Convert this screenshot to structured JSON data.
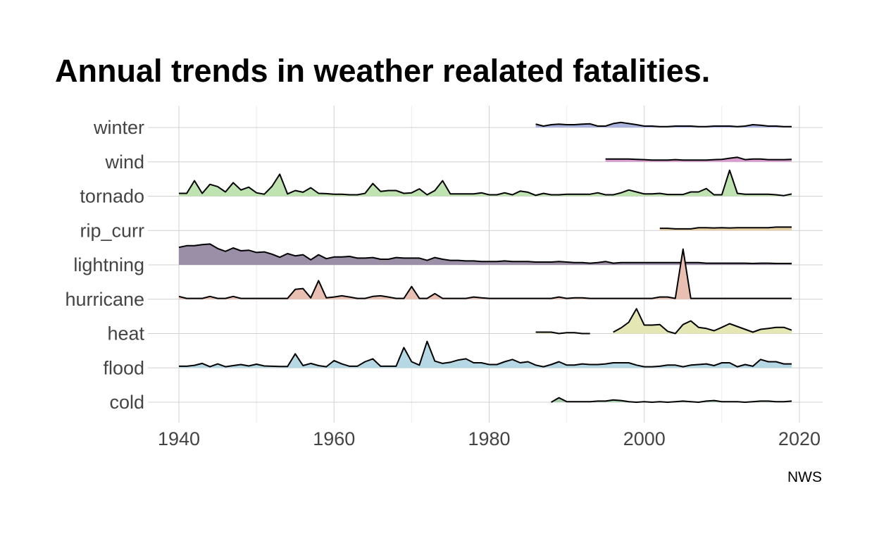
{
  "title": "Annual trends in weather realated fatalities.",
  "caption": "NWS",
  "chart_data": {
    "type": "area",
    "subtype": "ridgeline",
    "title": "Annual trends in weather realated fatalities.",
    "xlabel": "",
    "ylabel": "",
    "xlim": [
      1936,
      2023
    ],
    "x_ticks": [
      1940,
      1960,
      1980,
      2000,
      2020
    ],
    "grid": true,
    "legend": "none",
    "categories": [
      "winter",
      "wind",
      "tornado",
      "rip_curr",
      "lightning",
      "hurricane",
      "heat",
      "flood",
      "cold"
    ],
    "series": [
      {
        "name": "winter",
        "color": "#a9b3dc",
        "x": [
          1986,
          1987,
          1988,
          1989,
          1990,
          1991,
          1992,
          1993,
          1994,
          1995,
          1996,
          1997,
          1998,
          1999,
          2000,
          2001,
          2002,
          2003,
          2004,
          2005,
          2006,
          2007,
          2008,
          2009,
          2010,
          2011,
          2012,
          2013,
          2014,
          2015,
          2016,
          2017,
          2018,
          2019
        ],
        "y": [
          0.12,
          0.05,
          0.1,
          0.12,
          0.1,
          0.1,
          0.12,
          0.13,
          0.05,
          0.05,
          0.14,
          0.18,
          0.14,
          0.1,
          0.05,
          0.05,
          0.03,
          0.03,
          0.05,
          0.05,
          0.05,
          0.03,
          0.03,
          0.05,
          0.05,
          0.05,
          0.03,
          0.05,
          0.1,
          0.08,
          0.05,
          0.05,
          0.03,
          0.03
        ]
      },
      {
        "name": "wind",
        "color": "#d99ed0",
        "x": [
          1995,
          1996,
          1997,
          1998,
          1999,
          2000,
          2001,
          2002,
          2003,
          2004,
          2005,
          2006,
          2007,
          2008,
          2009,
          2010,
          2011,
          2012,
          2013,
          2014,
          2015,
          2016,
          2017,
          2018,
          2019
        ],
        "y": [
          0.1,
          0.1,
          0.1,
          0.1,
          0.09,
          0.08,
          0.06,
          0.06,
          0.06,
          0.08,
          0.06,
          0.06,
          0.06,
          0.06,
          0.08,
          0.09,
          0.13,
          0.16,
          0.08,
          0.1,
          0.1,
          0.08,
          0.08,
          0.08,
          0.09
        ]
      },
      {
        "name": "tornado",
        "color": "#bfe3b0",
        "x": [
          1940,
          1941,
          1942,
          1943,
          1944,
          1945,
          1946,
          1947,
          1948,
          1949,
          1950,
          1951,
          1952,
          1953,
          1954,
          1955,
          1956,
          1957,
          1958,
          1959,
          1960,
          1961,
          1962,
          1963,
          1964,
          1965,
          1966,
          1967,
          1968,
          1969,
          1970,
          1971,
          1972,
          1973,
          1974,
          1975,
          1976,
          1977,
          1978,
          1979,
          1980,
          1981,
          1982,
          1983,
          1984,
          1985,
          1986,
          1987,
          1988,
          1989,
          1990,
          1991,
          1992,
          1993,
          1994,
          1995,
          1996,
          1997,
          1998,
          1999,
          2000,
          2001,
          2002,
          2003,
          2004,
          2005,
          2006,
          2007,
          2008,
          2009,
          2010,
          2011,
          2012,
          2013,
          2014,
          2015,
          2016,
          2017,
          2018,
          2019
        ],
        "y": [
          0.1,
          0.1,
          0.55,
          0.1,
          0.42,
          0.34,
          0.15,
          0.48,
          0.22,
          0.32,
          0.12,
          0.07,
          0.35,
          0.78,
          0.08,
          0.2,
          0.14,
          0.3,
          0.1,
          0.09,
          0.07,
          0.07,
          0.05,
          0.05,
          0.1,
          0.45,
          0.17,
          0.2,
          0.2,
          0.1,
          0.12,
          0.26,
          0.05,
          0.2,
          0.55,
          0.08,
          0.08,
          0.08,
          0.08,
          0.12,
          0.05,
          0.05,
          0.12,
          0.05,
          0.18,
          0.14,
          0.03,
          0.1,
          0.05,
          0.05,
          0.07,
          0.07,
          0.07,
          0.07,
          0.12,
          0.05,
          0.05,
          0.12,
          0.22,
          0.15,
          0.08,
          0.08,
          0.1,
          0.06,
          0.06,
          0.06,
          0.15,
          0.15,
          0.27,
          0.05,
          0.05,
          0.92,
          0.1,
          0.07,
          0.07,
          0.07,
          0.07,
          0.05,
          0.02,
          0.08
        ]
      },
      {
        "name": "rip_curr",
        "color": "#e7cfa7",
        "x": [
          2002,
          2003,
          2004,
          2005,
          2006,
          2007,
          2008,
          2009,
          2010,
          2011,
          2012,
          2013,
          2014,
          2015,
          2016,
          2017,
          2018,
          2019
        ],
        "y": [
          0.08,
          0.08,
          0.06,
          0.06,
          0.06,
          0.1,
          0.1,
          0.09,
          0.1,
          0.09,
          0.1,
          0.1,
          0.1,
          0.1,
          0.1,
          0.12,
          0.12,
          0.12
        ]
      },
      {
        "name": "lightning",
        "color": "#9b8fa8",
        "x": [
          1940,
          1941,
          1942,
          1943,
          1944,
          1945,
          1946,
          1947,
          1948,
          1949,
          1950,
          1951,
          1952,
          1953,
          1954,
          1955,
          1956,
          1957,
          1958,
          1959,
          1960,
          1961,
          1962,
          1963,
          1964,
          1965,
          1966,
          1967,
          1968,
          1969,
          1970,
          1971,
          1972,
          1973,
          1974,
          1975,
          1976,
          1977,
          1978,
          1979,
          1980,
          1981,
          1982,
          1983,
          1984,
          1985,
          1986,
          1987,
          1988,
          1989,
          1990,
          1991,
          1992,
          1993,
          1994,
          1995,
          1996,
          1997,
          1998,
          1999,
          2000,
          2001,
          2002,
          2003,
          2004,
          2005,
          2006,
          2007,
          2008,
          2009,
          2010,
          2011,
          2012,
          2013,
          2014,
          2015,
          2016,
          2017,
          2018,
          2019
        ],
        "y": [
          0.62,
          0.68,
          0.68,
          0.72,
          0.74,
          0.58,
          0.48,
          0.6,
          0.5,
          0.52,
          0.44,
          0.46,
          0.38,
          0.27,
          0.4,
          0.32,
          0.36,
          0.18,
          0.36,
          0.22,
          0.28,
          0.28,
          0.3,
          0.24,
          0.24,
          0.26,
          0.2,
          0.2,
          0.26,
          0.24,
          0.24,
          0.24,
          0.16,
          0.26,
          0.2,
          0.16,
          0.16,
          0.14,
          0.14,
          0.12,
          0.12,
          0.12,
          0.14,
          0.12,
          0.12,
          0.12,
          0.1,
          0.1,
          0.1,
          0.12,
          0.1,
          0.08,
          0.08,
          0.06,
          0.08,
          0.12,
          0.06,
          0.08,
          0.08,
          0.08,
          0.08,
          0.08,
          0.08,
          0.08,
          0.08,
          0.08,
          0.08,
          0.08,
          0.06,
          0.06,
          0.06,
          0.06,
          0.06,
          0.06,
          0.05,
          0.06,
          0.06,
          0.05,
          0.05,
          0.05
        ]
      },
      {
        "name": "hurricane",
        "color": "#e8bfb1",
        "x": [
          1940,
          1941,
          1942,
          1943,
          1944,
          1945,
          1946,
          1947,
          1948,
          1949,
          1950,
          1951,
          1952,
          1953,
          1954,
          1955,
          1956,
          1957,
          1958,
          1959,
          1960,
          1961,
          1962,
          1963,
          1964,
          1965,
          1966,
          1967,
          1968,
          1969,
          1970,
          1971,
          1972,
          1973,
          1974,
          1975,
          1976,
          1977,
          1978,
          1979,
          1980,
          1981,
          1982,
          1983,
          1984,
          1985,
          1986,
          1987,
          1988,
          1989,
          1990,
          1991,
          1992,
          1993,
          1994,
          1995,
          1996,
          1997,
          1998,
          1999,
          2000,
          2001,
          2002,
          2003,
          2004,
          2005,
          2006,
          2007,
          2008,
          2009,
          2010,
          2011,
          2012,
          2013,
          2014,
          2015,
          2016,
          2017,
          2018,
          2019
        ],
        "y": [
          0.1,
          0.03,
          0.03,
          0.03,
          0.1,
          0.03,
          0.03,
          0.1,
          0.03,
          0.03,
          0.03,
          0.03,
          0.03,
          0.03,
          0.03,
          0.35,
          0.38,
          0.05,
          0.66,
          0.05,
          0.08,
          0.12,
          0.08,
          0.03,
          0.03,
          0.1,
          0.12,
          0.08,
          0.03,
          0.03,
          0.45,
          0.03,
          0.03,
          0.2,
          0.03,
          0.03,
          0.03,
          0.03,
          0.08,
          0.05,
          0.03,
          0.03,
          0.03,
          0.03,
          0.03,
          0.03,
          0.03,
          0.03,
          0.03,
          0.08,
          0.03,
          0.05,
          0.05,
          0.03,
          0.03,
          0.03,
          0.03,
          0.03,
          0.03,
          0.03,
          0.03,
          0.03,
          0.08,
          0.08,
          0.03,
          1.78,
          0.03,
          0.03,
          0.03,
          0.03,
          0.03,
          0.03,
          0.03,
          0.03,
          0.03,
          0.03,
          0.03,
          0.03,
          0.03,
          0.03
        ]
      },
      {
        "name": "heat",
        "color": "#e4e6b4",
        "x": [
          1986,
          1987,
          1988,
          1989,
          1990,
          1991,
          1992,
          1993,
          null,
          1996,
          1997,
          1998,
          1999,
          2000,
          2001,
          2002,
          2003,
          2004,
          2005,
          2006,
          2007,
          2008,
          2009,
          2010,
          2011,
          2012,
          2013,
          2014,
          2015,
          2016,
          2017,
          2018,
          2019
        ],
        "y": [
          0.05,
          0.05,
          0.05,
          0.0,
          0.03,
          0.03,
          0.0,
          0.0,
          null,
          0.05,
          0.2,
          0.4,
          0.88,
          0.3,
          0.3,
          0.32,
          0.08,
          0.0,
          0.32,
          0.45,
          0.22,
          0.18,
          0.1,
          0.22,
          0.35,
          0.25,
          0.15,
          0.05,
          0.15,
          0.18,
          0.22,
          0.22,
          0.12
        ]
      },
      {
        "name": "flood",
        "color": "#b5d8e4",
        "x": [
          1940,
          1941,
          1942,
          1943,
          1944,
          1945,
          1946,
          1947,
          1948,
          1949,
          1950,
          1951,
          1952,
          1953,
          1954,
          1955,
          1956,
          1957,
          1958,
          1959,
          1960,
          1961,
          1962,
          1963,
          1964,
          1965,
          1966,
          1967,
          1968,
          1969,
          1970,
          1971,
          1972,
          1973,
          1974,
          1975,
          1976,
          1977,
          1978,
          1979,
          1980,
          1981,
          1982,
          1983,
          1984,
          1985,
          1986,
          1987,
          1988,
          1989,
          1990,
          1991,
          1992,
          1993,
          1994,
          1995,
          1996,
          1997,
          1998,
          1999,
          2000,
          2001,
          2002,
          2003,
          2004,
          2005,
          2006,
          2007,
          2008,
          2009,
          2010,
          2011,
          2012,
          2013,
          2014,
          2015,
          2016,
          2017,
          2018,
          2019
        ],
        "y": [
          0.06,
          0.06,
          0.09,
          0.16,
          0.04,
          0.14,
          0.04,
          0.08,
          0.12,
          0.07,
          0.13,
          0.07,
          0.06,
          0.05,
          0.05,
          0.5,
          0.08,
          0.16,
          0.08,
          0.04,
          0.26,
          0.14,
          0.06,
          0.06,
          0.22,
          0.32,
          0.06,
          0.06,
          0.06,
          0.72,
          0.22,
          0.1,
          0.94,
          0.24,
          0.16,
          0.2,
          0.28,
          0.32,
          0.18,
          0.18,
          0.12,
          0.12,
          0.22,
          0.3,
          0.18,
          0.22,
          0.1,
          0.04,
          0.12,
          0.22,
          0.1,
          0.1,
          0.14,
          0.12,
          0.12,
          0.14,
          0.18,
          0.18,
          0.18,
          0.1,
          0.04,
          0.04,
          0.06,
          0.1,
          0.1,
          0.04,
          0.1,
          0.12,
          0.14,
          0.08,
          0.18,
          0.18,
          0.04,
          0.12,
          0.06,
          0.3,
          0.22,
          0.22,
          0.14,
          0.14
        ]
      },
      {
        "name": "cold",
        "color": "#a9cfb0",
        "x": [
          1988,
          1989,
          1990,
          1991,
          1992,
          1993,
          1994,
          1995,
          1996,
          1997,
          1998,
          1999,
          2000,
          2001,
          2002,
          2003,
          2004,
          2005,
          2006,
          2007,
          2008,
          2009,
          2010,
          2011,
          2012,
          2013,
          2014,
          2015,
          2016,
          2017,
          2018,
          2019
        ],
        "y": [
          0.0,
          0.16,
          0.02,
          0.02,
          0.02,
          0.02,
          0.04,
          0.04,
          0.08,
          0.06,
          0.02,
          0.0,
          0.02,
          0.0,
          0.02,
          0.0,
          0.02,
          0.04,
          0.02,
          0.0,
          0.04,
          0.06,
          0.02,
          0.02,
          0.02,
          0.0,
          0.02,
          0.04,
          0.04,
          0.02,
          0.02,
          0.04
        ]
      }
    ]
  }
}
